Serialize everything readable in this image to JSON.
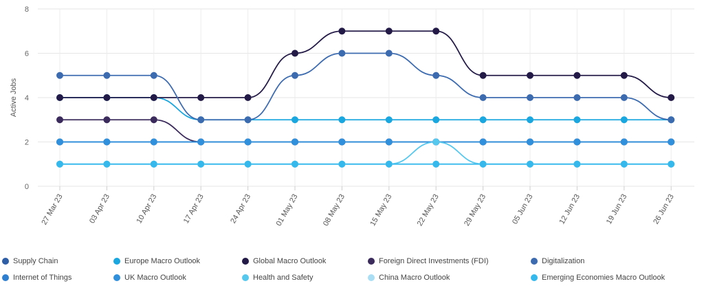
{
  "chart_data": {
    "type": "line",
    "ylabel": "Active Jobs",
    "xlabel": "",
    "title": "",
    "ylim": [
      0,
      8
    ],
    "yticks": [
      0,
      2,
      4,
      6,
      8
    ],
    "grid": true,
    "legend_position": "bottom",
    "categories": [
      "27 Mar 23",
      "03 Apr 23",
      "10 Apr 23",
      "17 Apr 23",
      "24 Apr 23",
      "01 May 23",
      "08 May 23",
      "15 May 23",
      "22 May 23",
      "29 May 23",
      "05 Jun 23",
      "12 Jun 23",
      "19 Jun 23",
      "26 Jun 23"
    ],
    "series": [
      {
        "name": "Supply Chain",
        "color": "#2e5ea6",
        "values": [
          2,
          2,
          2,
          2,
          2,
          2,
          2,
          2,
          2,
          2,
          2,
          2,
          2,
          2
        ]
      },
      {
        "name": "Europe Macro Outlook",
        "color": "#1aa7e0",
        "values": [
          4,
          4,
          4,
          3,
          3,
          3,
          3,
          3,
          3,
          3,
          3,
          3,
          3,
          3
        ]
      },
      {
        "name": "Global Macro Outlook",
        "color": "#241a47",
        "values": [
          4,
          4,
          4,
          4,
          4,
          6,
          7,
          7,
          7,
          5,
          5,
          5,
          5,
          4
        ]
      },
      {
        "name": "Foreign Direct Investments (FDI)",
        "color": "#3b2a5c",
        "values": [
          3,
          3,
          3,
          2,
          2,
          2,
          2,
          2,
          2,
          2,
          2,
          2,
          2,
          2
        ]
      },
      {
        "name": "Digitalization",
        "color": "#3d6bb0",
        "values": [
          5,
          5,
          5,
          3,
          3,
          5,
          6,
          6,
          5,
          4,
          4,
          4,
          4,
          3
        ]
      },
      {
        "name": "Internet of Things",
        "color": "#2f7fd0",
        "values": [
          2,
          2,
          2,
          2,
          2,
          2,
          2,
          2,
          2,
          2,
          2,
          2,
          2,
          2
        ]
      },
      {
        "name": "UK Macro Outlook",
        "color": "#3190dc",
        "values": [
          2,
          2,
          2,
          2,
          2,
          2,
          2,
          2,
          2,
          2,
          2,
          2,
          2,
          2
        ]
      },
      {
        "name": "Health and Safety",
        "color": "#56c8ee",
        "values": [
          1,
          1,
          1,
          1,
          1,
          1,
          1,
          1,
          2,
          1,
          1,
          1,
          1,
          1
        ]
      },
      {
        "name": "China Macro Outlook",
        "color": "#a9def5",
        "values": [
          1,
          1,
          1,
          1,
          1,
          1,
          1,
          1,
          1,
          1,
          1,
          1,
          1,
          1
        ]
      },
      {
        "name": "Emerging Economies Macro Outlook",
        "color": "#35b9ec",
        "values": [
          1,
          1,
          1,
          1,
          1,
          1,
          1,
          1,
          1,
          1,
          1,
          1,
          1,
          1
        ]
      }
    ]
  }
}
